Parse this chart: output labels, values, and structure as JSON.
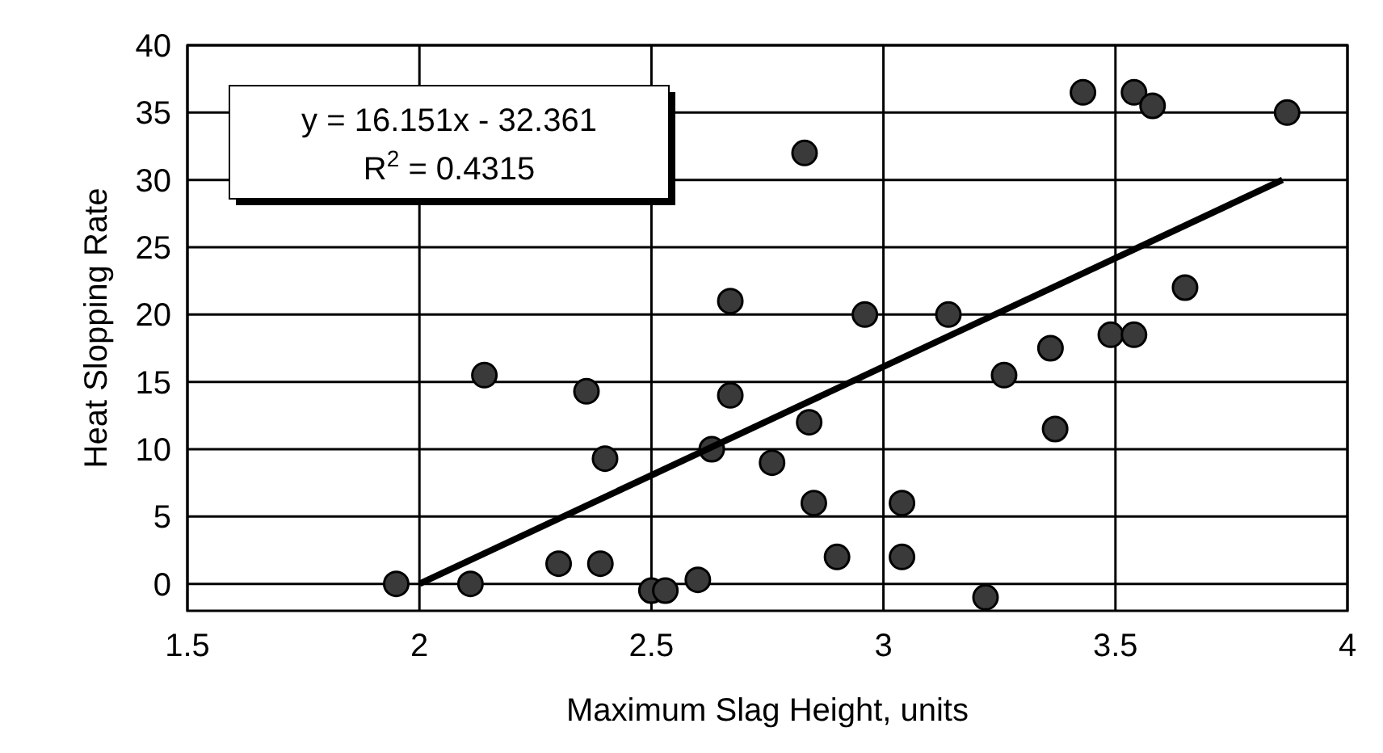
{
  "chart_data": {
    "type": "scatter",
    "xlabel": "Maximum Slag Height, units",
    "ylabel": "Heat Slopping Rate",
    "xlim": [
      1.5,
      4
    ],
    "xticks": [
      1.5,
      2,
      2.5,
      3,
      3.5,
      4
    ],
    "ylim": [
      -2,
      40
    ],
    "yticks": [
      0,
      5,
      10,
      15,
      20,
      25,
      30,
      35,
      40
    ],
    "grid": true,
    "marker": "circle",
    "annotations": [
      "y = 16.151x - 32.361",
      "R$^{2}$ = 0.4315"
    ],
    "series": [
      {
        "color": "#3a3a3a",
        "x": [
          1.95,
          2.11,
          2.14,
          2.3,
          2.39,
          2.36,
          2.4,
          2.5,
          2.53,
          2.6,
          2.63,
          2.67,
          2.67,
          2.76,
          2.84,
          2.83,
          2.85,
          2.9,
          2.96,
          3.04,
          3.04,
          3.14,
          3.22,
          3.26,
          3.36,
          3.37,
          3.43,
          3.49,
          3.54,
          3.54,
          3.58,
          3.65,
          3.87
        ],
        "values": [
          0,
          0,
          15.5,
          1.5,
          1.5,
          14.3,
          9.3,
          -0.5,
          -0.5,
          0.3,
          10,
          21,
          14,
          9,
          12,
          32,
          6,
          2,
          20,
          6,
          2,
          20,
          -1,
          15.5,
          17.5,
          11.5,
          36.5,
          18.5,
          18.5,
          36.5,
          35.5,
          22,
          35
        ]
      },
      {
        "type": "line",
        "color": "#000000",
        "marker": "none",
        "x": [
          2,
          3.86
        ],
        "values": [
          0,
          30
        ]
      }
    ]
  }
}
